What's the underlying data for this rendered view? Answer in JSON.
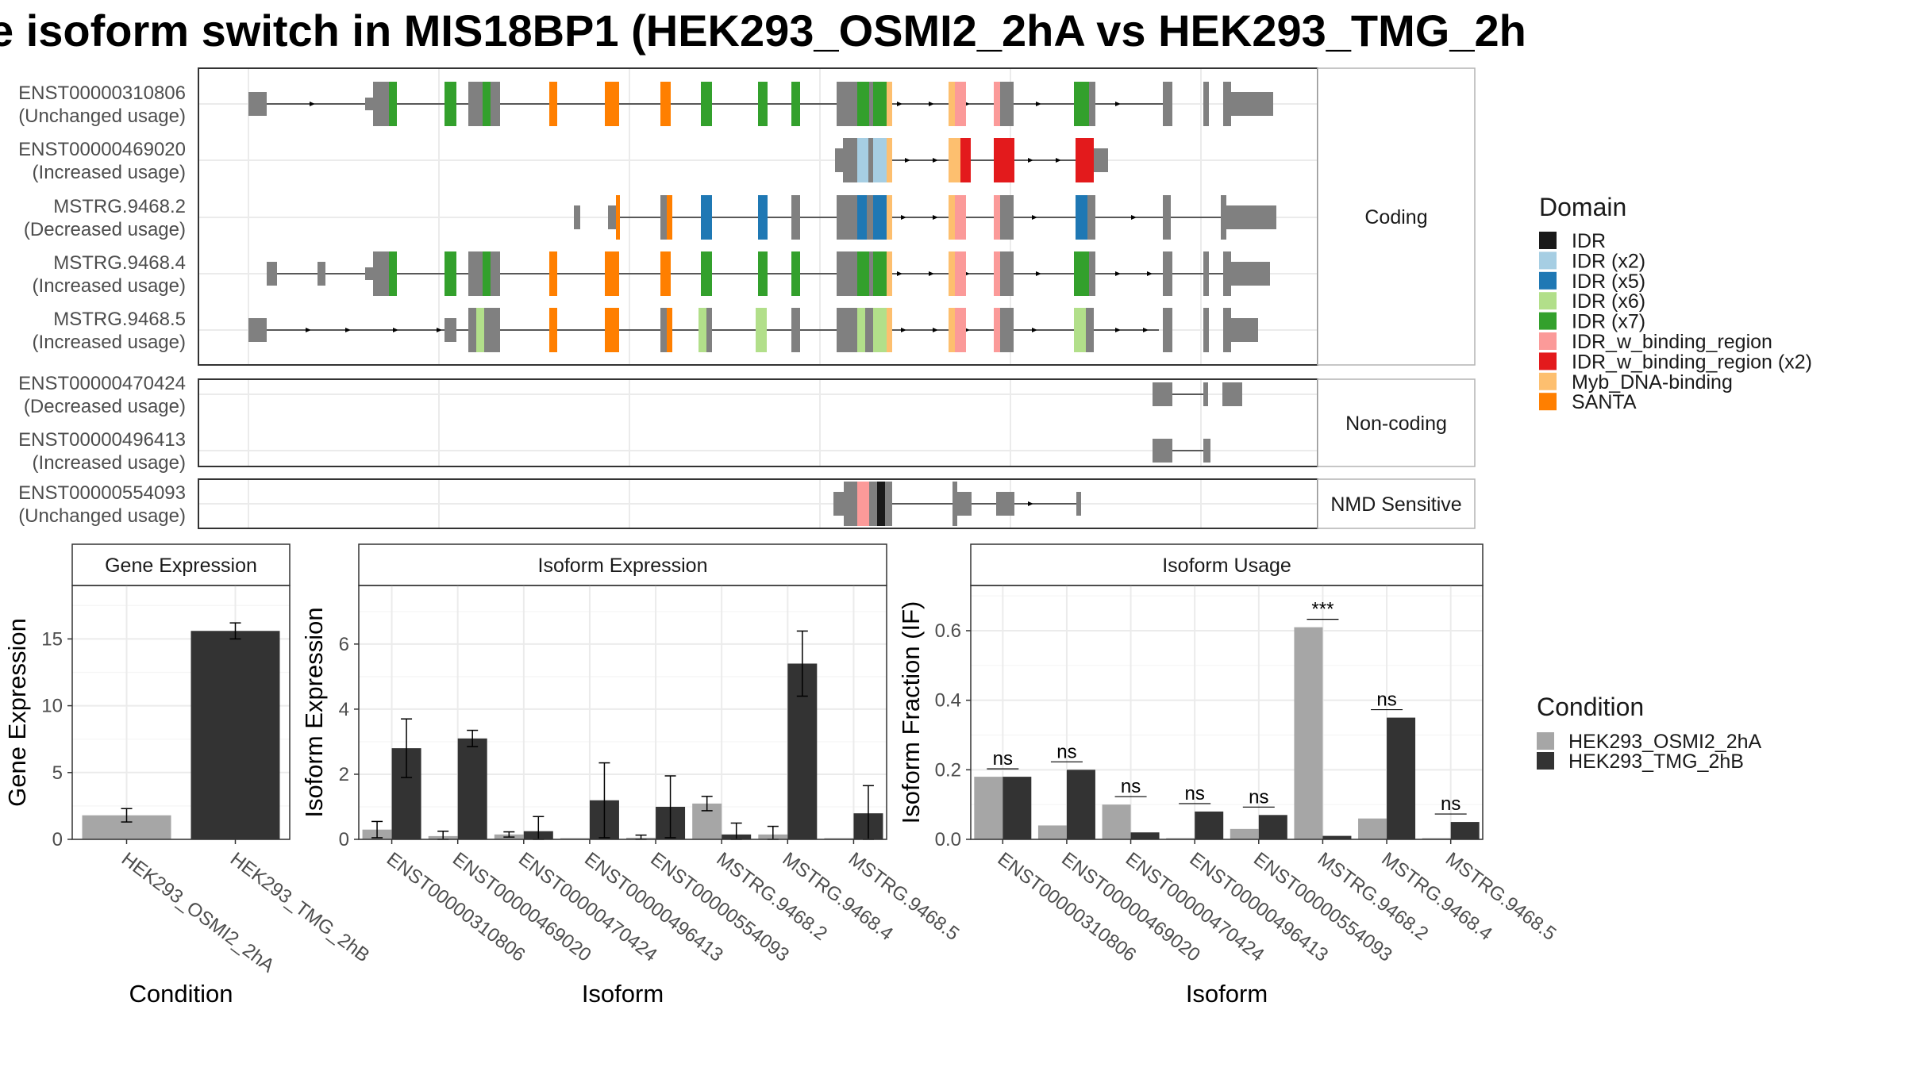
{
  "title": "e isoform switch in MIS18BP1 (HEK293_OSMI2_2hA vs HEK293_TMG_2h",
  "colors": {
    "condition_a": "#a6a6a6",
    "condition_b": "#333333",
    "exon_gray": "#808080",
    "grid": "#ebebeb",
    "strip_border": "#b3b3b3"
  },
  "chart_data": [
    {
      "type": "gene-structure",
      "title": "",
      "facets": [
        {
          "label": "Coding",
          "transcripts": [
            {
              "id": "ENST00000310806",
              "usage": "(Unchanged usage)"
            },
            {
              "id": "ENST00000469020",
              "usage": "(Increased usage)"
            },
            {
              "id": "MSTRG.9468.2",
              "usage": "(Decreased usage)"
            },
            {
              "id": "MSTRG.9468.4",
              "usage": "(Increased usage)"
            },
            {
              "id": "MSTRG.9468.5",
              "usage": "(Increased usage)"
            }
          ]
        },
        {
          "label": "Non-coding",
          "transcripts": [
            {
              "id": "ENST00000470424",
              "usage": "(Decreased usage)"
            },
            {
              "id": "ENST00000496413",
              "usage": "(Increased usage)"
            }
          ]
        },
        {
          "label": "NMD Sensitive",
          "transcripts": [
            {
              "id": "ENST00000554093",
              "usage": "(Unchanged usage)"
            }
          ]
        }
      ],
      "legend": {
        "title": "Domain",
        "position": "right",
        "items": [
          {
            "label": "IDR",
            "color": "#1a1a1a"
          },
          {
            "label": "IDR (x2)",
            "color": "#a6cee3"
          },
          {
            "label": "IDR (x5)",
            "color": "#1f78b4"
          },
          {
            "label": "IDR (x6)",
            "color": "#b2df8a"
          },
          {
            "label": "IDR (x7)",
            "color": "#33a02c"
          },
          {
            "label": "IDR_w_binding_region",
            "color": "#fb9a99"
          },
          {
            "label": "IDR_w_binding_region (x2)",
            "color": "#e31a1c"
          },
          {
            "label": "Myb_DNA-binding",
            "color": "#fdbf6f"
          },
          {
            "label": "SANTA",
            "color": "#ff7f00"
          }
        ]
      }
    },
    {
      "type": "bar",
      "title": "Gene Expression",
      "xlabel": "Condition",
      "ylabel": "Gene Expression",
      "ylim": [
        0,
        19
      ],
      "yticks": [
        0,
        5,
        10,
        15
      ],
      "categories": [
        "HEK293_OSMI2_2hA",
        "HEK293_TMG_2hB"
      ],
      "values": [
        1.8,
        15.6
      ],
      "errors": [
        0.5,
        0.6
      ]
    },
    {
      "type": "bar",
      "title": "Isoform Expression",
      "xlabel": "Isoform",
      "ylabel": "Isoform Expression",
      "ylim": [
        0,
        7.8
      ],
      "yticks": [
        0,
        2,
        4,
        6
      ],
      "categories": [
        "ENST00000310806",
        "ENST00000469020",
        "ENST00000470424",
        "ENST00000496413",
        "ENST00000554093",
        "MSTRG.9468.2",
        "MSTRG.9468.4",
        "MSTRG.9468.5"
      ],
      "series": [
        {
          "name": "HEK293_OSMI2_2hA",
          "values": [
            0.3,
            0.1,
            0.15,
            0.0,
            0.05,
            1.1,
            0.15,
            0.0
          ],
          "errors": [
            0.25,
            0.15,
            0.08,
            0.0,
            0.08,
            0.22,
            0.25,
            0.0
          ]
        },
        {
          "name": "HEK293_TMG_2hB",
          "values": [
            2.8,
            3.1,
            0.25,
            1.2,
            1.0,
            0.15,
            5.4,
            0.8
          ],
          "errors": [
            0.9,
            0.25,
            0.45,
            1.15,
            0.95,
            0.35,
            1.0,
            0.85
          ]
        }
      ]
    },
    {
      "type": "bar",
      "title": "Isoform Usage",
      "xlabel": "Isoform",
      "ylabel": "Isoform Fraction (IF)",
      "ylim": [
        0,
        0.73
      ],
      "yticks": [
        0.0,
        0.2,
        0.4,
        0.6
      ],
      "ytick_labels": [
        "0.0",
        "0.2",
        "0.4",
        "0.6"
      ],
      "categories": [
        "ENST00000310806",
        "ENST00000469020",
        "ENST00000470424",
        "ENST00000496413",
        "ENST00000554093",
        "MSTRG.9468.2",
        "MSTRG.9468.4",
        "MSTRG.9468.5"
      ],
      "series": [
        {
          "name": "HEK293_OSMI2_2hA",
          "values": [
            0.18,
            0.04,
            0.1,
            0.0,
            0.03,
            0.61,
            0.06,
            0.0
          ]
        },
        {
          "name": "HEK293_TMG_2hB",
          "values": [
            0.18,
            0.2,
            0.02,
            0.08,
            0.07,
            0.01,
            0.35,
            0.05
          ]
        }
      ],
      "significance": [
        "ns",
        "ns",
        "ns",
        "ns",
        "ns",
        "***",
        "ns",
        "ns"
      ],
      "legend": {
        "title": "Condition",
        "position": "right",
        "items": [
          "HEK293_OSMI2_2hA",
          "HEK293_TMG_2hB"
        ]
      }
    }
  ]
}
